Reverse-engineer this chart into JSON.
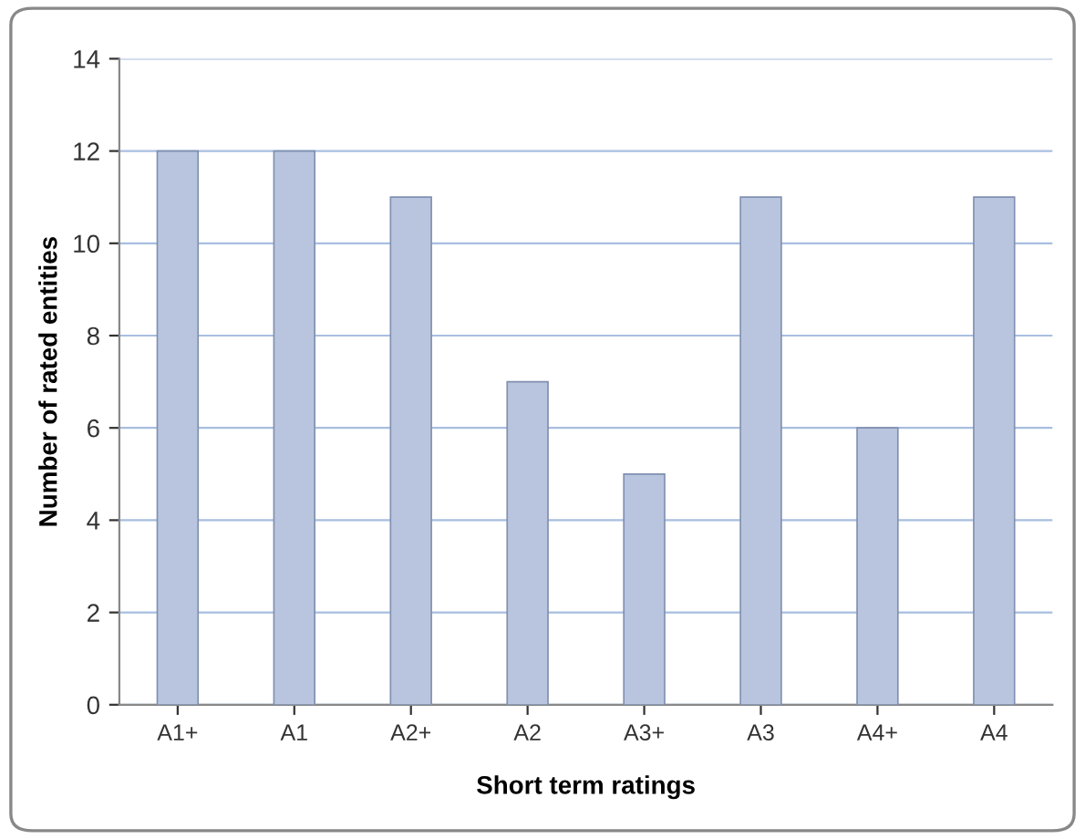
{
  "chart_data": {
    "type": "bar",
    "xlabel": "Short term ratings",
    "ylabel": "Number of rated entities",
    "categories": [
      "A1+",
      "A1",
      "A2+",
      "A2",
      "A3+",
      "A3",
      "A4+",
      "A4"
    ],
    "values": [
      12,
      12,
      11,
      7,
      5,
      11,
      6,
      11
    ],
    "color": "#b9c5de",
    "ylim": [
      0,
      14
    ],
    "yticks": [
      0,
      2,
      4,
      6,
      8,
      10,
      12,
      14
    ],
    "grid": "y"
  }
}
